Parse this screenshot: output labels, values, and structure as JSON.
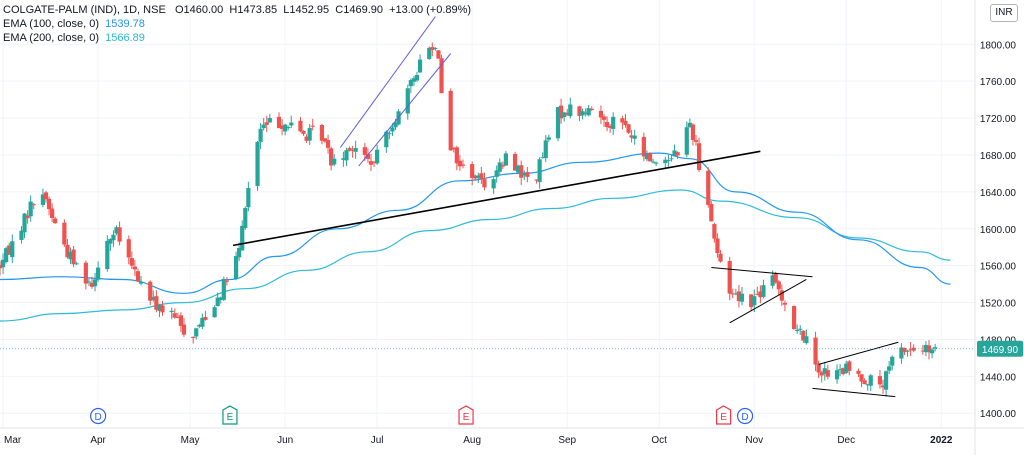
{
  "header": {
    "symbol": "COLGATE-PALM (IND), 1D, NSE",
    "open_label": "O",
    "open": "1460.00",
    "high_label": "H",
    "high": "1473.85",
    "low_label": "L",
    "low": "1452.95",
    "close_label": "C",
    "close": "1469.90",
    "change": "+13.00 (+0.89%)",
    "ema100_label": "EMA (100, close, 0)",
    "ema100_value": "1539.78",
    "ema200_label": "EMA (200, close, 0)",
    "ema200_value": "1566.89",
    "currency": "INR"
  },
  "colors": {
    "up": "#26a69a",
    "down": "#ef5350",
    "ema100": "#2196f3",
    "ema200": "#2dbbd9",
    "channel": "#5b5fe0",
    "trendline": "#000000",
    "pattern": "#000000"
  },
  "chart_data": {
    "type": "candlestick",
    "y_axis": {
      "min": 1384,
      "max": 1848,
      "ticks": [
        1400,
        1440,
        1480,
        1520,
        1560,
        1600,
        1640,
        1680,
        1720,
        1760,
        1800
      ],
      "tick_labels": [
        "1400.00",
        "1440.00",
        "1480.00",
        "1520.00",
        "1560.00",
        "1600.00",
        "1640.00",
        "1680.00",
        "1720.00",
        "1760.00",
        "1800.00"
      ]
    },
    "x_axis": {
      "labels": [
        "Mar",
        "Apr",
        "May",
        "Jun",
        "Jul",
        "Aug",
        "Sep",
        "Oct",
        "Nov",
        "Dec",
        "2022"
      ],
      "label_days": [
        1,
        32,
        62,
        93,
        123,
        154,
        185,
        215,
        246,
        276,
        307
      ]
    },
    "last_price": 1469.9,
    "last_price_label": "1469.90",
    "anchors": [
      [
        0,
        1560
      ],
      [
        5,
        1590
      ],
      [
        10,
        1625
      ],
      [
        14,
        1640
      ],
      [
        18,
        1605
      ],
      [
        22,
        1575
      ],
      [
        26,
        1555
      ],
      [
        30,
        1540
      ],
      [
        34,
        1585
      ],
      [
        38,
        1595
      ],
      [
        42,
        1565
      ],
      [
        46,
        1540
      ],
      [
        50,
        1520
      ],
      [
        54,
        1510
      ],
      [
        58,
        1500
      ],
      [
        62,
        1480
      ],
      [
        66,
        1502
      ],
      [
        70,
        1520
      ],
      [
        74,
        1545
      ],
      [
        78,
        1575
      ],
      [
        80,
        1625
      ],
      [
        83,
        1680
      ],
      [
        85,
        1708
      ],
      [
        88,
        1715
      ],
      [
        92,
        1715
      ],
      [
        96,
        1710
      ],
      [
        100,
        1700
      ],
      [
        104,
        1710
      ],
      [
        108,
        1675
      ],
      [
        111,
        1680
      ],
      [
        114,
        1690
      ],
      [
        118,
        1680
      ],
      [
        122,
        1670
      ],
      [
        126,
        1705
      ],
      [
        130,
        1725
      ],
      [
        134,
        1755
      ],
      [
        138,
        1790
      ],
      [
        141,
        1800
      ],
      [
        143,
        1790
      ],
      [
        145,
        1715
      ],
      [
        147,
        1690
      ],
      [
        150,
        1668
      ],
      [
        154,
        1660
      ],
      [
        158,
        1650
      ],
      [
        162,
        1662
      ],
      [
        166,
        1680
      ],
      [
        170,
        1660
      ],
      [
        174,
        1648
      ],
      [
        178,
        1690
      ],
      [
        182,
        1725
      ],
      [
        186,
        1730
      ],
      [
        190,
        1725
      ],
      [
        194,
        1730
      ],
      [
        198,
        1715
      ],
      [
        202,
        1720
      ],
      [
        206,
        1700
      ],
      [
        210,
        1680
      ],
      [
        214,
        1672
      ],
      [
        218,
        1678
      ],
      [
        222,
        1688
      ],
      [
        225,
        1715
      ],
      [
        227,
        1690
      ],
      [
        229,
        1650
      ],
      [
        231,
        1630
      ],
      [
        233,
        1590
      ],
      [
        235,
        1560
      ],
      [
        237,
        1535
      ],
      [
        241,
        1528
      ],
      [
        245,
        1522
      ],
      [
        249,
        1534
      ],
      [
        252,
        1545
      ],
      [
        254,
        1535
      ],
      [
        256,
        1520
      ],
      [
        258,
        1500
      ],
      [
        260,
        1488
      ],
      [
        262,
        1485
      ],
      [
        264,
        1470
      ],
      [
        266,
        1455
      ],
      [
        268,
        1445
      ],
      [
        272,
        1440
      ],
      [
        276,
        1448
      ],
      [
        280,
        1440
      ],
      [
        284,
        1435
      ],
      [
        288,
        1430
      ],
      [
        290,
        1448
      ],
      [
        292,
        1465
      ],
      [
        295,
        1470
      ],
      [
        298,
        1468
      ],
      [
        301,
        1470
      ],
      [
        304,
        1465
      ],
      [
        307,
        1470
      ]
    ],
    "ema100": [
      [
        0,
        1545
      ],
      [
        20,
        1548
      ],
      [
        40,
        1545
      ],
      [
        60,
        1530
      ],
      [
        75,
        1545
      ],
      [
        90,
        1570
      ],
      [
        110,
        1600
      ],
      [
        130,
        1620
      ],
      [
        150,
        1652
      ],
      [
        170,
        1660
      ],
      [
        190,
        1672
      ],
      [
        215,
        1682
      ],
      [
        225,
        1676
      ],
      [
        240,
        1640
      ],
      [
        260,
        1618
      ],
      [
        280,
        1588
      ],
      [
        300,
        1558
      ],
      [
        310,
        1540
      ]
    ],
    "ema200": [
      [
        0,
        1500
      ],
      [
        20,
        1508
      ],
      [
        40,
        1512
      ],
      [
        60,
        1520
      ],
      [
        80,
        1535
      ],
      [
        100,
        1555
      ],
      [
        120,
        1575
      ],
      [
        140,
        1598
      ],
      [
        160,
        1610
      ],
      [
        180,
        1622
      ],
      [
        200,
        1633
      ],
      [
        222,
        1642
      ],
      [
        235,
        1630
      ],
      [
        260,
        1612
      ],
      [
        280,
        1590
      ],
      [
        300,
        1575
      ],
      [
        310,
        1566
      ]
    ],
    "annotations": {
      "channel_upper": [
        [
          111,
          1688
        ],
        [
          142,
          1830
        ]
      ],
      "channel_lower": [
        [
          117,
          1668
        ],
        [
          147,
          1790
        ]
      ],
      "trendline": [
        [
          76,
          1582
        ],
        [
          248,
          1684
        ]
      ],
      "triangle_upper": [
        [
          232,
          1558
        ],
        [
          265,
          1548
        ]
      ],
      "triangle_lower": [
        [
          238,
          1498
        ],
        [
          263,
          1545
        ]
      ],
      "wedge_upper": [
        [
          267,
          1453
        ],
        [
          293,
          1477
        ]
      ],
      "wedge_lower": [
        [
          265,
          1427
        ],
        [
          292,
          1418
        ]
      ]
    },
    "events": [
      {
        "label": "D",
        "day": 32,
        "color": "#2962ff"
      },
      {
        "label": "E",
        "day": 75,
        "color": "#089981"
      },
      {
        "label": "E",
        "day": 152,
        "color": "#f23645"
      },
      {
        "label": "E",
        "day": 236,
        "color": "#f23645"
      },
      {
        "label": "D",
        "day": 243,
        "color": "#2962ff"
      }
    ]
  }
}
